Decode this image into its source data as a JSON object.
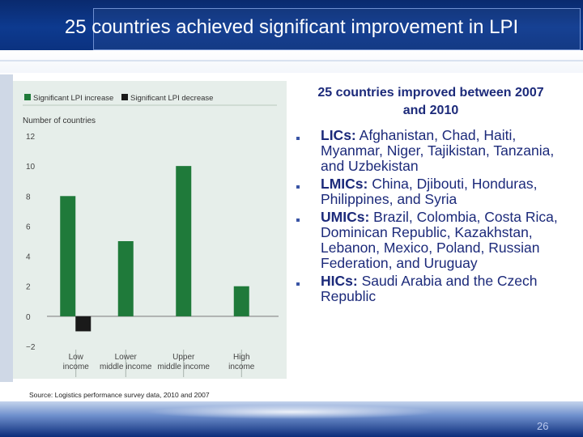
{
  "slide": {
    "title": "25 countries achieved significant improvement in LPI",
    "page_number": "26"
  },
  "right_panel": {
    "heading": "25 countries improved between 2007 and 2010",
    "bullets": [
      {
        "label": "LICs:",
        "text": " Afghanistan, Chad, Haiti, Myanmar, Niger, Tajikistan, Tanzania, and Uzbekistan"
      },
      {
        "label": "LMICs:",
        "text": " China, Djibouti, Honduras, Philippines, and Syria"
      },
      {
        "label": "UMICs:",
        "text": " Brazil, Colombia, Costa Rica, Dominican Republic, Kazakhstan, Lebanon, Mexico, Poland, Russian Federation, and Uruguay"
      },
      {
        "label": "HICs:",
        "text": " Saudi Arabia and the Czech Republic"
      }
    ]
  },
  "source": "Source: Logistics performance survey data, 2010 and 2007",
  "colors": {
    "increase": "#1f7a3a",
    "decrease": "#1a1a1a"
  },
  "chart_data": {
    "type": "bar",
    "ylabel": "Number of countries",
    "ylim": [
      -2,
      12
    ],
    "yticks": [
      -2,
      0,
      2,
      4,
      6,
      8,
      10,
      12
    ],
    "ytick_labels": [
      "−2",
      "0",
      "2",
      "4",
      "6",
      "8",
      "10",
      "12"
    ],
    "categories": [
      {
        "lines": [
          "Low",
          "income"
        ]
      },
      {
        "lines": [
          "Lower",
          "middle income"
        ]
      },
      {
        "lines": [
          "Upper",
          "middle income"
        ]
      },
      {
        "lines": [
          "High",
          "income"
        ]
      }
    ],
    "legend_position": "top-left",
    "series": [
      {
        "name": "Significant LPI increase",
        "values": [
          8,
          5,
          10,
          2
        ]
      },
      {
        "name": "Significant LPI decrease",
        "values": [
          -1,
          0,
          0,
          0
        ]
      }
    ]
  }
}
